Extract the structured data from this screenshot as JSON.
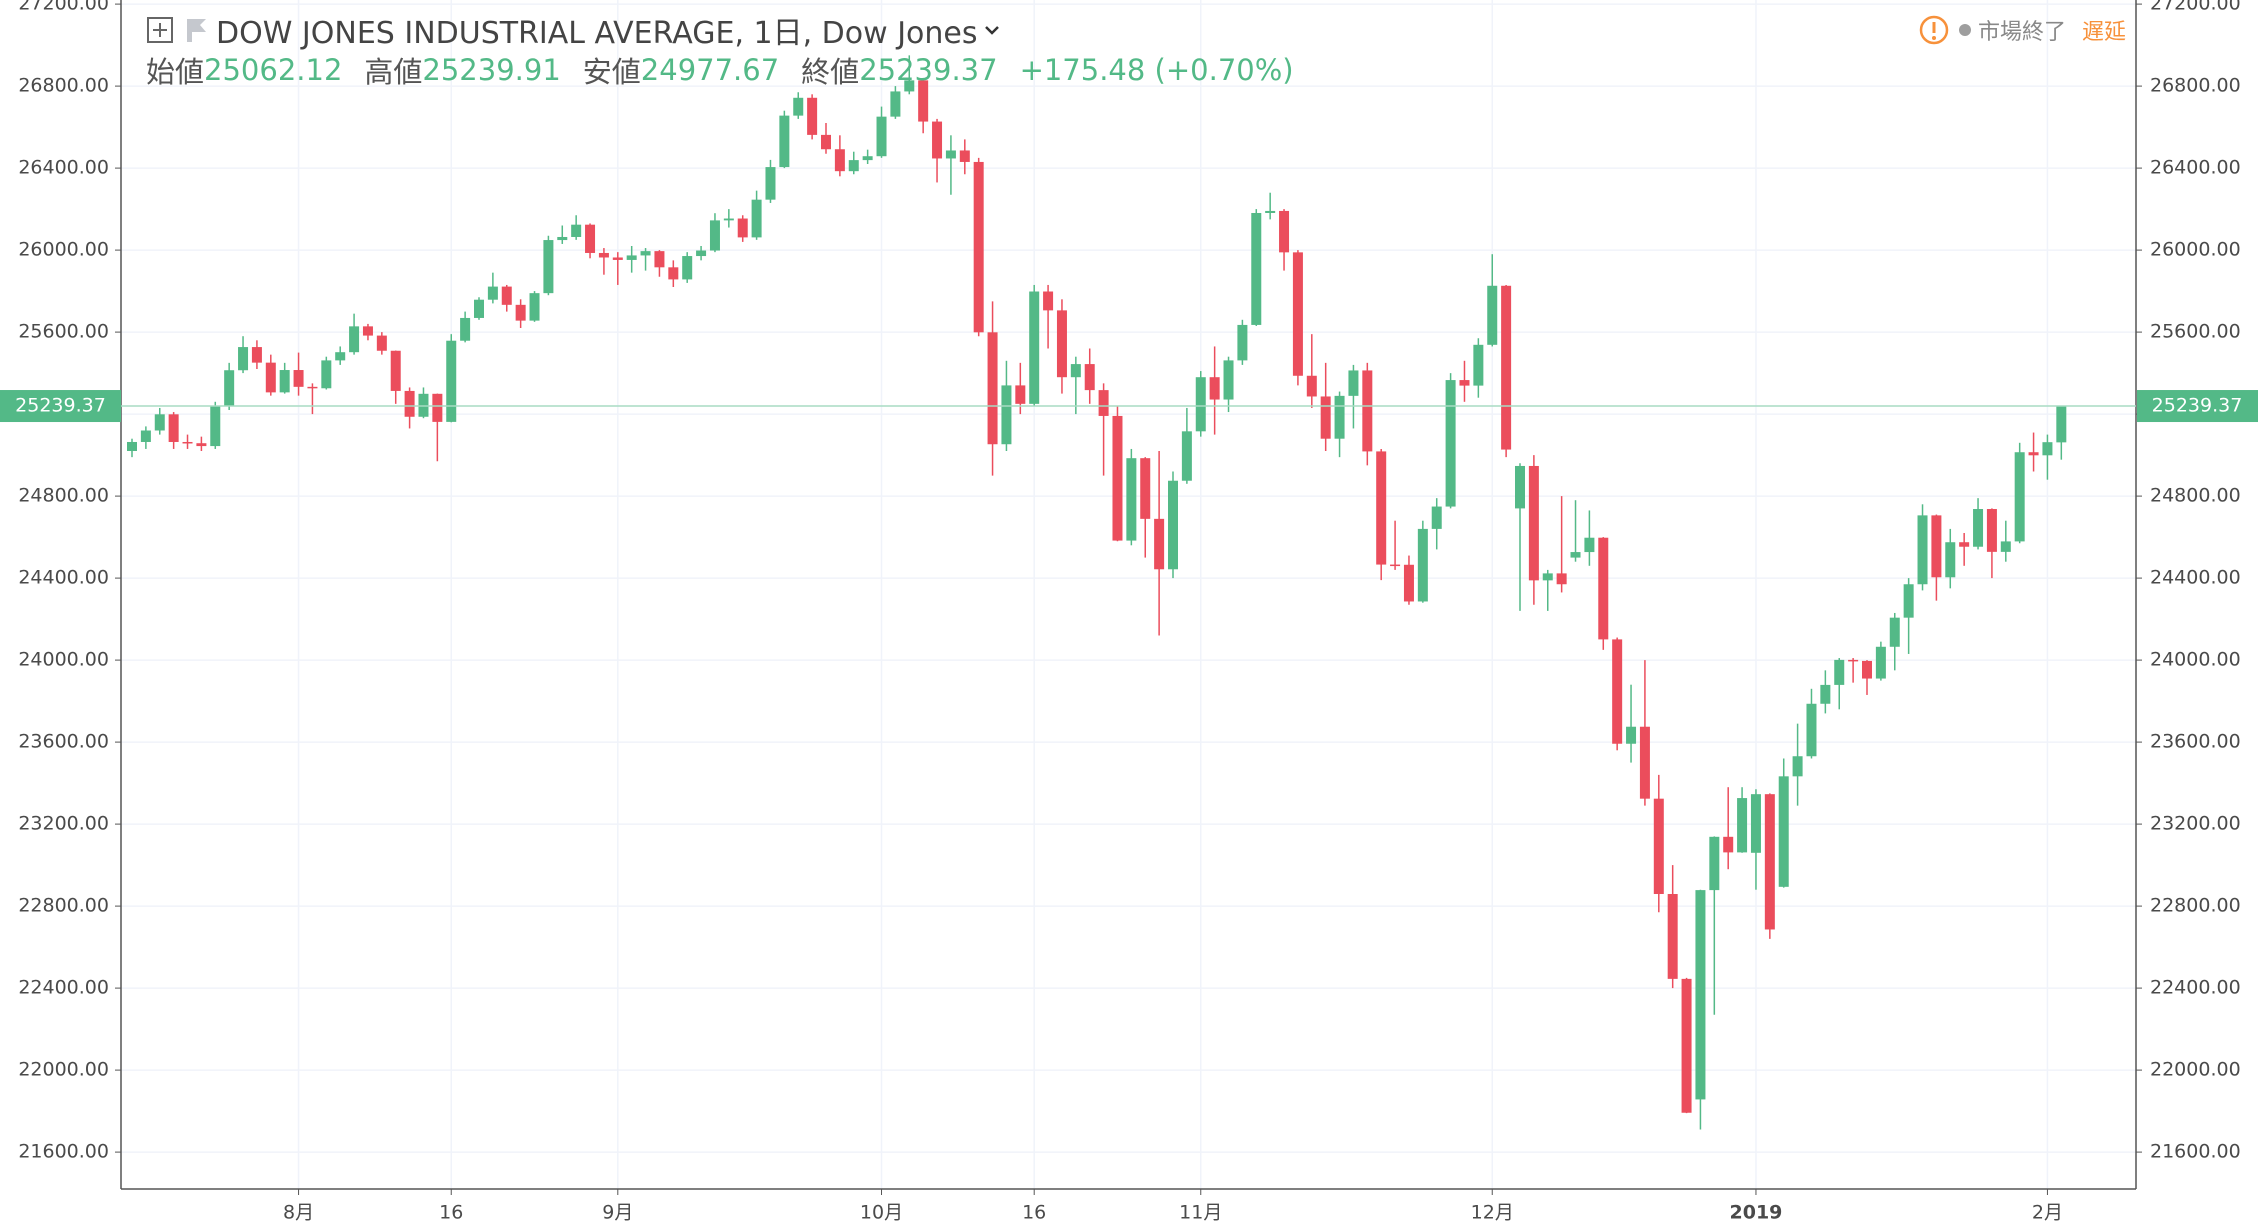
{
  "chart_data": {
    "type": "candlestick",
    "title": "DOW JONES INDUSTRIAL AVERAGE, 1日, Dow Jones",
    "ohlc_labels": [
      "始値",
      "高値",
      "安値",
      "終値"
    ],
    "change": "+175.48 (+0.70%)",
    "market_status": "市場終了",
    "delay": "遅延",
    "up_color": "#53b987",
    "down_color": "#eb4d5c",
    "grid": true,
    "ylim": [
      21420,
      27220
    ],
    "yticks": [
      {
        "value": 21600,
        "label": "21600.00"
      },
      {
        "value": 22000,
        "label": "22000.00"
      },
      {
        "value": 22400,
        "label": "22400.00"
      },
      {
        "value": 22800,
        "label": "22800.00"
      },
      {
        "value": 23200,
        "label": "23200.00"
      },
      {
        "value": 23600,
        "label": "23600.00"
      },
      {
        "value": 24000,
        "label": "24000.00"
      },
      {
        "value": 24400,
        "label": "24400.00"
      },
      {
        "value": 24800,
        "label": "24800.00"
      },
      {
        "value": 25200,
        "label": "25200.00"
      },
      {
        "value": 25600,
        "label": "25600.00"
      },
      {
        "value": 26000,
        "label": "26000.00"
      },
      {
        "value": 26400,
        "label": "26400.00"
      },
      {
        "value": 26800,
        "label": "26800.00"
      },
      {
        "value": 27200,
        "label": "27200.00"
      }
    ],
    "categories": [
      null,
      null,
      null,
      null,
      null,
      null,
      null,
      null,
      null,
      null,
      null,
      null,
      "8月",
      null,
      null,
      null,
      null,
      null,
      null,
      null,
      null,
      null,
      null,
      "16",
      null,
      null,
      null,
      null,
      null,
      null,
      null,
      null,
      null,
      null,
      null,
      "9月",
      null,
      null,
      null,
      null,
      null,
      null,
      null,
      null,
      null,
      null,
      null,
      null,
      null,
      null,
      null,
      null,
      null,
      null,
      "10月",
      null,
      null,
      null,
      null,
      null,
      null,
      null,
      null,
      null,
      null,
      "16",
      null,
      null,
      null,
      null,
      null,
      null,
      null,
      null,
      null,
      null,
      null,
      "11月",
      null,
      null,
      null,
      null,
      null,
      null,
      null,
      null,
      null,
      null,
      null,
      null,
      null,
      null,
      null,
      null,
      null,
      null,
      null,
      null,
      "12月",
      null,
      null,
      null,
      null,
      null,
      null,
      null,
      null,
      null,
      null,
      null,
      null,
      null,
      null,
      null,
      null,
      null,
      null,
      "2019",
      null,
      null,
      null,
      null,
      null,
      null,
      null,
      null,
      null,
      null,
      null,
      null,
      null,
      null,
      null,
      null,
      null,
      null,
      null,
      null,
      "2月",
      null
    ],
    "open": [
      25020,
      25064,
      25120,
      25199,
      25064,
      25058,
      25044,
      25241,
      25414,
      25527,
      25451,
      25306,
      25415,
      25333,
      25326,
      25462,
      25502,
      25628,
      25583,
      25509,
      25313,
      25187,
      25299,
      25162,
      25558,
      25669,
      25758,
      25822,
      25733,
      25656,
      25790,
      26049,
      26064,
      26124,
      25986,
      25964,
      25952,
      25974,
      25995,
      25916,
      25857,
      25971,
      25998,
      26145,
      26154,
      26062,
      26246,
      26405,
      26656,
      26743,
      26562,
      26492,
      26385,
      26439,
      26458,
      26651,
      26774,
      26828,
      26627,
      26447,
      26486,
      26430,
      25599,
      25053,
      25340,
      25250,
      25798,
      25706,
      25380,
      25444,
      25317,
      25191,
      24583,
      24985,
      24689,
      24443,
      24875,
      25116,
      25380,
      25271,
      25462,
      25635,
      26181,
      26191,
      25989,
      25387,
      25286,
      25080,
      25289,
      25413,
      25018,
      24466,
      24465,
      24286,
      24640,
      24749,
      25366,
      25339,
      25538,
      25826,
      24740,
      24947,
      24389,
      24423,
      24500,
      24527,
      24597,
      24101,
      23592,
      23675,
      23324,
      22859,
      22445,
      21857,
      22878,
      23138,
      23062,
      23060,
      23346,
      22894,
      23433,
      23531,
      23787,
      23879,
      24001,
      23996,
      23910,
      24065,
      24207,
      24370,
      24706,
      24404,
      24575,
      24553,
      24737,
      24528,
      24579,
      25014,
      24999,
      25062.12
    ],
    "high": [
      25080,
      25140,
      25230,
      25210,
      25100,
      25090,
      25260,
      25450,
      25580,
      25560,
      25490,
      25450,
      25500,
      25350,
      25480,
      25530,
      25690,
      25640,
      25600,
      25510,
      25330,
      25330,
      25300,
      25590,
      25700,
      25770,
      25890,
      25830,
      25760,
      25800,
      26070,
      26120,
      26170,
      26130,
      26010,
      25990,
      26020,
      26010,
      26000,
      25950,
      25990,
      26020,
      26180,
      26200,
      26170,
      26290,
      26440,
      26680,
      26770,
      26760,
      26620,
      26560,
      26480,
      26490,
      26700,
      26800,
      26950,
      26830,
      26640,
      26560,
      26540,
      26450,
      25750,
      25460,
      25450,
      25830,
      25830,
      25760,
      25480,
      25520,
      25350,
      25240,
      25030,
      24990,
      25020,
      24920,
      25230,
      25410,
      25530,
      25480,
      25660,
      26200,
      26280,
      26200,
      26000,
      25590,
      25450,
      25310,
      25440,
      25450,
      25030,
      24680,
      24510,
      24680,
      24790,
      25400,
      25460,
      25570,
      25980,
      25830,
      24960,
      25000,
      24440,
      24800,
      24780,
      24730,
      24600,
      24110,
      23880,
      24000,
      23440,
      23000,
      22450,
      22880,
      23140,
      23380,
      23380,
      23370,
      23350,
      23520,
      23690,
      23860,
      23950,
      24010,
      24010,
      24000,
      24090,
      24230,
      24400,
      24760,
      24710,
      24640,
      24620,
      24790,
      24740,
      24680,
      25060,
      25110,
      25100,
      25239.91
    ],
    "low": [
      24990,
      25030,
      25100,
      25030,
      25030,
      25020,
      25030,
      25220,
      25400,
      25420,
      25290,
      25300,
      25290,
      25200,
      25320,
      25440,
      25490,
      25560,
      25490,
      25250,
      25130,
      25180,
      24970,
      25160,
      25550,
      25660,
      25740,
      25700,
      25620,
      25650,
      25780,
      26030,
      26050,
      25960,
      25880,
      25830,
      25890,
      25900,
      25870,
      25820,
      25840,
      25950,
      25990,
      26110,
      26040,
      26050,
      26230,
      26400,
      26640,
      26540,
      26470,
      26360,
      26370,
      26420,
      26450,
      26640,
      26760,
      26570,
      26330,
      26270,
      26370,
      25580,
      24900,
      25020,
      25200,
      25240,
      25520,
      25300,
      25200,
      25250,
      24900,
      24580,
      24560,
      24500,
      24120,
      24400,
      24860,
      25090,
      25100,
      25210,
      25440,
      25630,
      26150,
      25900,
      25340,
      25230,
      25020,
      24990,
      25130,
      24950,
      24390,
      24440,
      24270,
      24280,
      24540,
      24740,
      25260,
      25280,
      25530,
      24990,
      24240,
      24270,
      24240,
      24330,
      24480,
      24460,
      24050,
      23560,
      23500,
      23290,
      22770,
      22400,
      21790,
      21710,
      22270,
      22980,
      23060,
      22880,
      22640,
      22890,
      23290,
      23520,
      23740,
      23760,
      23890,
      23830,
      23900,
      23950,
      24030,
      24340,
      24290,
      24350,
      24460,
      24540,
      24400,
      24480,
      24570,
      24920,
      24880,
      24977.67
    ],
    "close": [
      25064,
      25120,
      25199,
      25064,
      25058,
      25044,
      25241,
      25414,
      25527,
      25451,
      25306,
      25415,
      25333,
      25326,
      25462,
      25502,
      25628,
      25583,
      25509,
      25313,
      25187,
      25299,
      25162,
      25558,
      25669,
      25758,
      25822,
      25733,
      25656,
      25790,
      26049,
      26064,
      26124,
      25986,
      25964,
      25952,
      25974,
      25995,
      25916,
      25857,
      25971,
      25998,
      26145,
      26154,
      26062,
      26246,
      26405,
      26656,
      26743,
      26562,
      26492,
      26385,
      26439,
      26458,
      26651,
      26774,
      26828,
      26627,
      26447,
      26486,
      26430,
      25599,
      25053,
      25340,
      25250,
      25798,
      25706,
      25380,
      25444,
      25317,
      25191,
      24583,
      24985,
      24689,
      24443,
      24875,
      25116,
      25380,
      25271,
      25462,
      25635,
      26181,
      26191,
      25989,
      25387,
      25286,
      25080,
      25289,
      25413,
      25018,
      24466,
      24465,
      24286,
      24640,
      24749,
      25366,
      25339,
      25538,
      25826,
      25027,
      24947,
      24389,
      24423,
      24370,
      24527,
      24597,
      24101,
      23592,
      23675,
      23324,
      22859,
      22445,
      21792,
      22878,
      23138,
      23062,
      23327,
      23346,
      22686,
      23433,
      23531,
      23787,
      23879,
      24001,
      23996,
      23910,
      24065,
      24207,
      24370,
      24706,
      24404,
      24575,
      24553,
      24737,
      24528,
      24579,
      25014,
      24999,
      25063,
      25239.37
    ]
  }
}
